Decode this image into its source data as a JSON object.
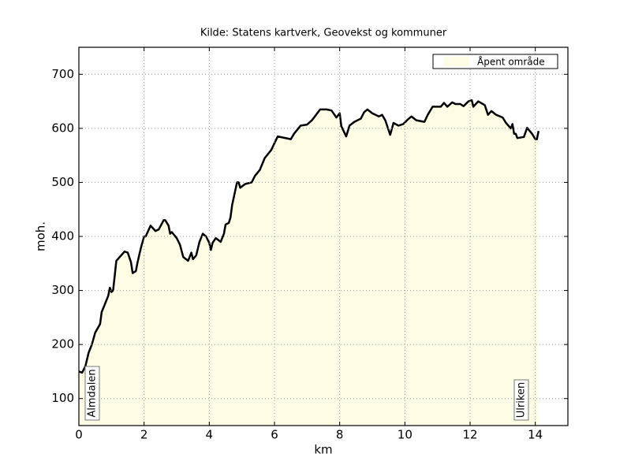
{
  "chart_data": {
    "type": "area",
    "title": "Kilde: Statens kartverk, Geovekst og kommuner",
    "x_label": "km",
    "y_label": "moh.",
    "x": [
      0,
      0.1,
      0.2,
      0.3,
      0.4,
      0.5,
      0.65,
      0.7,
      0.8,
      0.9,
      0.95,
      1.0,
      1.05,
      1.15,
      1.3,
      1.4,
      1.5,
      1.6,
      1.65,
      1.75,
      1.8,
      1.9,
      2.0,
      2.05,
      2.2,
      2.35,
      2.45,
      2.6,
      2.65,
      2.75,
      2.8,
      2.85,
      3.0,
      3.1,
      3.2,
      3.35,
      3.45,
      3.5,
      3.6,
      3.7,
      3.8,
      3.9,
      4.0,
      4.05,
      4.1,
      4.2,
      4.35,
      4.45,
      4.5,
      4.6,
      4.65,
      4.7,
      4.85,
      4.9,
      4.95,
      5.1,
      5.3,
      5.4,
      5.55,
      5.7,
      5.9,
      6.1,
      6.5,
      6.6,
      6.8,
      7.0,
      7.15,
      7.4,
      7.6,
      7.75,
      7.9,
      8.0,
      8.05,
      8.2,
      8.3,
      8.45,
      8.65,
      8.75,
      8.85,
      9.0,
      9.2,
      9.3,
      9.4,
      9.55,
      9.65,
      9.8,
      9.95,
      10.1,
      10.2,
      10.35,
      10.6,
      10.7,
      10.85,
      11.1,
      11.2,
      11.3,
      11.45,
      11.55,
      11.7,
      11.8,
      11.95,
      12.05,
      12.1,
      12.25,
      12.45,
      12.55,
      12.65,
      12.8,
      13.0,
      13.1,
      13.25,
      13.3,
      13.35,
      13.4,
      13.45,
      13.65,
      13.75,
      13.9,
      14.0,
      14.05,
      14.1
    ],
    "series": [
      {
        "name": "Åpent område",
        "color": "#fdfde6",
        "values": [
          150,
          148,
          160,
          185,
          200,
          222,
          238,
          260,
          275,
          290,
          305,
          297,
          300,
          355,
          365,
          372,
          370,
          352,
          332,
          336,
          352,
          378,
          400,
          400,
          420,
          410,
          413,
          430,
          430,
          420,
          405,
          408,
          397,
          385,
          362,
          355,
          370,
          358,
          365,
          390,
          405,
          400,
          388,
          375,
          388,
          397,
          390,
          405,
          422,
          425,
          435,
          458,
          500,
          500,
          490,
          497,
          500,
          512,
          523,
          545,
          560,
          585,
          580,
          590,
          605,
          607,
          615,
          635,
          635,
          633,
          620,
          628,
          604,
          585,
          605,
          612,
          618,
          630,
          635,
          628,
          622,
          625,
          615,
          588,
          610,
          605,
          608,
          617,
          622,
          615,
          612,
          625,
          640,
          640,
          647,
          640,
          648,
          645,
          645,
          641,
          650,
          652,
          640,
          650,
          643,
          625,
          632,
          625,
          620,
          610,
          600,
          608,
          590,
          590,
          582,
          584,
          601,
          590,
          580,
          580,
          595
        ]
      }
    ],
    "line_color": "#000000",
    "annotations": [
      "Almdalen",
      "Ulriken"
    ],
    "xlim": [
      0,
      15
    ],
    "xticks": [
      0,
      2,
      4,
      6,
      8,
      10,
      12,
      14
    ],
    "ylim": [
      50,
      750
    ],
    "yticks": [
      100,
      200,
      300,
      400,
      500,
      600,
      700
    ],
    "grid": true,
    "legend": "upper right"
  }
}
